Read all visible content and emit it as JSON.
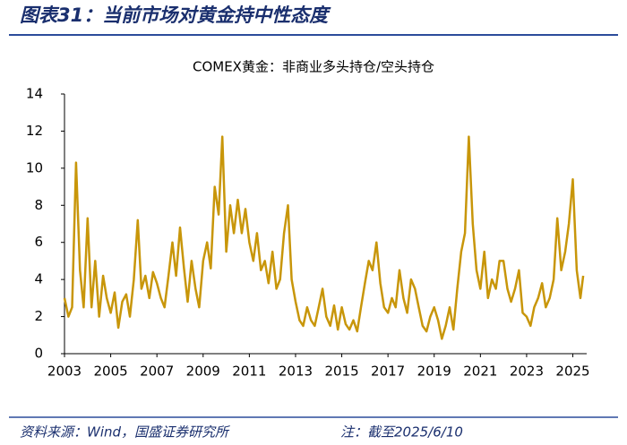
{
  "header_title": "图表31：当前市场对黄金持中性态度",
  "source": "资料来源：Wind，国盛证券研究所",
  "note": "注：截至2025/6/10",
  "chart_data": {
    "type": "line",
    "title": "COMEX黄金：非商业多头持仓/空头持仓",
    "x": [
      2003,
      2003.17,
      2003.33,
      2003.5,
      2003.67,
      2003.83,
      2004,
      2004.17,
      2004.33,
      2004.5,
      2004.67,
      2004.83,
      2005,
      2005.17,
      2005.33,
      2005.5,
      2005.67,
      2005.83,
      2006,
      2006.17,
      2006.33,
      2006.5,
      2006.67,
      2006.83,
      2007,
      2007.17,
      2007.33,
      2007.5,
      2007.67,
      2007.83,
      2008,
      2008.17,
      2008.33,
      2008.5,
      2008.67,
      2008.83,
      2009,
      2009.17,
      2009.33,
      2009.5,
      2009.67,
      2009.83,
      2010,
      2010.17,
      2010.33,
      2010.5,
      2010.67,
      2010.83,
      2011,
      2011.17,
      2011.33,
      2011.5,
      2011.67,
      2011.83,
      2012,
      2012.17,
      2012.33,
      2012.5,
      2012.67,
      2012.83,
      2013,
      2013.17,
      2013.33,
      2013.5,
      2013.67,
      2013.83,
      2014,
      2014.17,
      2014.33,
      2014.5,
      2014.67,
      2014.83,
      2015,
      2015.17,
      2015.33,
      2015.5,
      2015.67,
      2015.83,
      2016,
      2016.17,
      2016.33,
      2016.5,
      2016.67,
      2016.83,
      2017,
      2017.17,
      2017.33,
      2017.5,
      2017.67,
      2017.83,
      2018,
      2018.17,
      2018.33,
      2018.5,
      2018.67,
      2018.83,
      2019,
      2019.17,
      2019.33,
      2019.5,
      2019.67,
      2019.83,
      2020,
      2020.17,
      2020.33,
      2020.5,
      2020.67,
      2020.83,
      2021,
      2021.17,
      2021.33,
      2021.5,
      2021.67,
      2021.83,
      2022,
      2022.17,
      2022.33,
      2022.5,
      2022.67,
      2022.83,
      2023,
      2023.17,
      2023.33,
      2023.5,
      2023.67,
      2023.83,
      2024,
      2024.17,
      2024.33,
      2024.5,
      2024.67,
      2024.83,
      2025,
      2025.17,
      2025.33,
      2025.45
    ],
    "series": [
      {
        "color": "#c8960a",
        "values": [
          3.0,
          2.0,
          2.5,
          10.3,
          4.5,
          2.5,
          7.3,
          2.5,
          5.0,
          2.0,
          4.2,
          3.0,
          2.2,
          3.3,
          1.4,
          2.8,
          3.2,
          2.0,
          4.0,
          7.2,
          3.5,
          4.2,
          3.0,
          4.4,
          3.8,
          3.0,
          2.5,
          4.2,
          6.0,
          4.2,
          6.8,
          4.6,
          2.8,
          5.0,
          3.5,
          2.5,
          5.0,
          6.0,
          4.6,
          9.0,
          7.5,
          11.7,
          5.5,
          8.0,
          6.5,
          8.3,
          6.5,
          7.8,
          6.0,
          5.0,
          6.5,
          4.5,
          5.0,
          3.8,
          5.5,
          3.5,
          4.0,
          6.5,
          8.0,
          4.0,
          2.8,
          1.8,
          1.5,
          2.5,
          1.8,
          1.5,
          2.5,
          3.5,
          2.0,
          1.5,
          2.6,
          1.3,
          2.5,
          1.6,
          1.3,
          1.8,
          1.2,
          2.5,
          3.8,
          5.0,
          4.5,
          6.0,
          3.8,
          2.5,
          2.2,
          3.0,
          2.5,
          4.5,
          3.0,
          2.2,
          4.0,
          3.5,
          2.5,
          1.5,
          1.2,
          2.0,
          2.5,
          1.8,
          0.8,
          1.5,
          2.5,
          1.3,
          3.5,
          5.5,
          6.5,
          11.7,
          7.0,
          4.5,
          3.5,
          5.5,
          3.0,
          4.0,
          3.5,
          5.0,
          5.0,
          3.5,
          2.8,
          3.5,
          4.5,
          2.2,
          2.0,
          1.5,
          2.5,
          3.0,
          3.8,
          2.5,
          3.0,
          4.0,
          7.3,
          4.5,
          5.5,
          7.0,
          9.4,
          4.5,
          3.0,
          4.2
        ]
      }
    ],
    "xlim": [
      2003,
      2025.6
    ],
    "xticks": [
      2003,
      2005,
      2007,
      2009,
      2011,
      2013,
      2015,
      2017,
      2019,
      2021,
      2023,
      2025
    ],
    "ylim": [
      0,
      14
    ],
    "yticks": [
      0,
      2,
      4,
      6,
      8,
      10,
      12,
      14
    ],
    "grid": false
  }
}
